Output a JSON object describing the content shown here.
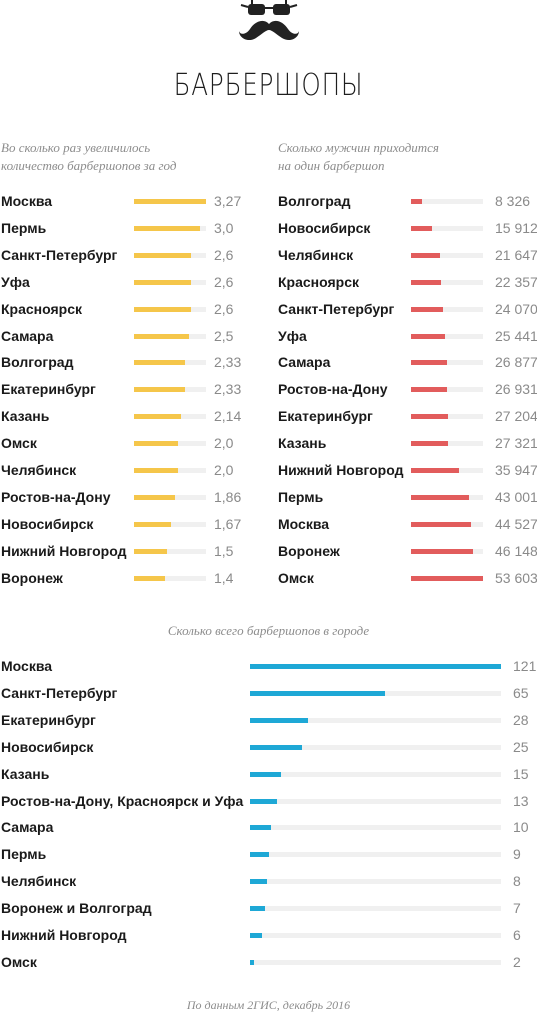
{
  "title": "БАРБЕРШОПЫ",
  "colors": {
    "yellow": "#f5c64a",
    "red": "#e25c5c",
    "blue": "#1ea8d6"
  },
  "logo": {
    "icon": "hipster-glasses-mustache-icon"
  },
  "chart_data": [
    {
      "type": "bar",
      "title_lines": [
        "Во сколько раз увеличилось",
        "количество барбершопов за год"
      ],
      "color": "#f5c64a",
      "categories": [
        "Москва",
        "Пермь",
        "Санкт-Петербург",
        "Уфа",
        "Красноярск",
        "Самара",
        "Волгоград",
        "Екатеринбург",
        "Казань",
        "Омск",
        "Челябинск",
        "Ростов-на-Дону",
        "Новосибирск",
        "Нижний Новгород",
        "Воронеж"
      ],
      "labels": [
        "3,27",
        "3,0",
        "2,6",
        "2,6",
        "2,6",
        "2,5",
        "2,33",
        "2,33",
        "2,14",
        "2,0",
        "2,0",
        "1,86",
        "1,67",
        "1,5",
        "1,4"
      ],
      "values": [
        3.27,
        3.0,
        2.6,
        2.6,
        2.6,
        2.5,
        2.33,
        2.33,
        2.14,
        2.0,
        2.0,
        1.86,
        1.67,
        1.5,
        1.4
      ],
      "xlim": [
        0,
        3.27
      ]
    },
    {
      "type": "bar",
      "title_lines": [
        "Сколько мужчин приходится",
        "на один барбершоп"
      ],
      "color": "#e25c5c",
      "categories": [
        "Волгоград",
        "Новосибирск",
        "Челябинск",
        "Красноярск",
        "Санкт-Петербург",
        "Уфа",
        "Самара",
        "Ростов-на-Дону",
        "Екатеринбург",
        "Казань",
        "Нижний Новгород",
        "Пермь",
        "Москва",
        "Воронеж",
        "Омск"
      ],
      "labels": [
        "8 326",
        "15 912",
        "21 647",
        "22 357",
        "24 070",
        "25 441",
        "26 877",
        "26 931",
        "27 204",
        "27 321",
        "35 947",
        "43 001",
        "44 527",
        "46 148",
        "53 603"
      ],
      "values": [
        8326,
        15912,
        21647,
        22357,
        24070,
        25441,
        26877,
        26931,
        27204,
        27321,
        35947,
        43001,
        44527,
        46148,
        53603
      ],
      "xlim": [
        0,
        53603
      ]
    },
    {
      "type": "bar",
      "title_lines": [
        "Сколько всего барбершопов в городе"
      ],
      "color": "#1ea8d6",
      "categories": [
        "Москва",
        "Санкт-Петербург",
        "Екатеринбург",
        "Новосибирск",
        "Казань",
        "Ростов-на-Дону, Красноярск и Уфа",
        "Самара",
        "Пермь",
        "Челябинск",
        "Воронеж и Волгоград",
        "Нижний Новгород",
        "Омск"
      ],
      "labels": [
        "121",
        "65",
        "28",
        "25",
        "15",
        "13",
        "10",
        "9",
        "8",
        "7",
        "6",
        "2"
      ],
      "values": [
        121,
        65,
        28,
        25,
        15,
        13,
        10,
        9,
        8,
        7,
        6,
        2
      ],
      "xlim": [
        0,
        121
      ]
    }
  ],
  "source_note": "По данным 2ГИС, декабрь 2016"
}
